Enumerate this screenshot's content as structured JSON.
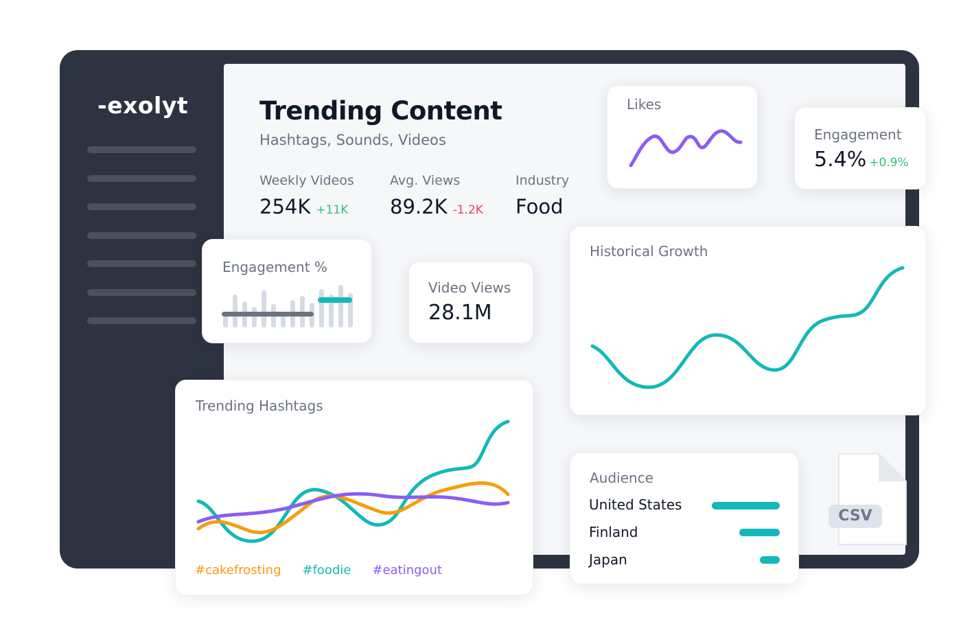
{
  "brand": {
    "logo_text": "-exolyt"
  },
  "header": {
    "title": "Trending Content",
    "subtitle": "Hashtags, Sounds, Videos"
  },
  "stats": [
    {
      "label": "Weekly Videos",
      "value": "254K",
      "delta": "+11K"
    },
    {
      "label": "Avg. Views",
      "value": "89.2K",
      "delta": "-1.2K"
    },
    {
      "label": "Industry",
      "value": "Food"
    }
  ],
  "cards": {
    "likes": {
      "title": "Likes"
    },
    "engagement": {
      "title": "Engagement",
      "value": "5.4%",
      "delta": "+0.9%"
    },
    "engagement_pct": {
      "title": "Engagement %"
    },
    "video_views": {
      "title": "Video Views",
      "value": "28.1M"
    },
    "historical_growth": {
      "title": "Historical Growth"
    },
    "trending_hashtags": {
      "title": "Trending Hashtags",
      "legend": [
        "#cakefrosting",
        "#foodie",
        "#eatingout"
      ]
    },
    "audience": {
      "title": "Audience",
      "rows": [
        {
          "country": "United States",
          "share": 1.0
        },
        {
          "country": "Finland",
          "share": 0.6
        },
        {
          "country": "Japan",
          "share": 0.29
        }
      ]
    },
    "csv": {
      "label": "CSV"
    }
  },
  "colors": {
    "teal": "#14b8b8",
    "purple": "#8b5cf6",
    "orange": "#f59e0b",
    "positive": "#2ec27e",
    "negative": "#ef4060",
    "frame": "#2d3340"
  }
}
